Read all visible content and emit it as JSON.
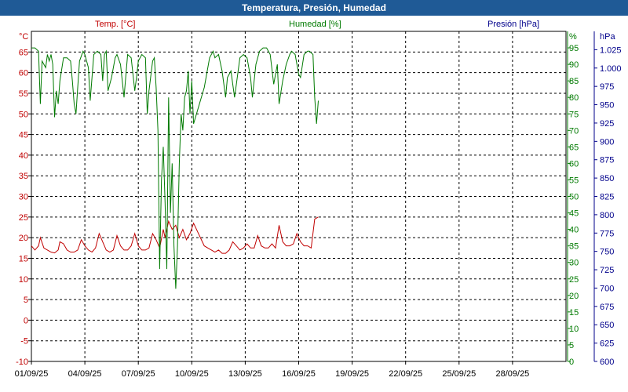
{
  "window": {
    "title": "Temperatura, Presión, Humedad"
  },
  "headers": {
    "temp": "Temp. [°C]",
    "hum": "Humedad [%]",
    "pres": "Presión [hPa]",
    "temp_unit": "°C",
    "hum_unit": "%",
    "pres_unit": "hPa"
  },
  "colors": {
    "temp": "#c00000",
    "hum": "#007a00",
    "pres": "#00008b",
    "title_bg": "#1f5a96"
  },
  "chart_data": {
    "type": "line",
    "title": "Temperatura, Presión, Humedad",
    "x_ticks": [
      "01/09/25",
      "04/09/25",
      "07/09/25",
      "10/09/25",
      "13/09/25",
      "16/09/25",
      "19/09/25",
      "22/09/25",
      "25/09/25",
      "28/09/25"
    ],
    "x_range_days": [
      0,
      30
    ],
    "grid": true,
    "axes": {
      "temp": {
        "label": "°C",
        "range": [
          -10,
          70
        ],
        "ticks": [
          -10,
          -5,
          0,
          5,
          10,
          15,
          20,
          25,
          30,
          35,
          40,
          45,
          50,
          55,
          60,
          65
        ]
      },
      "hum": {
        "label": "%",
        "range": [
          0,
          100
        ],
        "ticks": [
          0,
          5,
          10,
          15,
          20,
          25,
          30,
          35,
          40,
          45,
          50,
          55,
          60,
          65,
          70,
          75,
          80,
          85,
          90,
          95
        ]
      },
      "pres": {
        "label": "hPa",
        "range": [
          600,
          1050
        ],
        "ticks": [
          "600",
          "625",
          "650",
          "675",
          "700",
          "725",
          "750",
          "775",
          "800",
          "825",
          "850",
          "875",
          "900",
          "925",
          "950",
          "975",
          "1.000",
          "1.025"
        ]
      }
    },
    "series": [
      {
        "name": "Temp. [°C]",
        "axis": "temp",
        "points": [
          [
            0.0,
            18
          ],
          [
            0.2,
            17
          ],
          [
            0.4,
            18
          ],
          [
            0.5,
            20
          ],
          [
            0.7,
            17.5
          ],
          [
            0.9,
            17
          ],
          [
            1.1,
            16.5
          ],
          [
            1.3,
            16.3
          ],
          [
            1.5,
            17
          ],
          [
            1.6,
            19
          ],
          [
            1.8,
            18.5
          ],
          [
            2.0,
            17
          ],
          [
            2.2,
            16.5
          ],
          [
            2.4,
            16.5
          ],
          [
            2.6,
            17
          ],
          [
            2.8,
            19.5
          ],
          [
            3.0,
            18
          ],
          [
            3.2,
            17
          ],
          [
            3.4,
            16.5
          ],
          [
            3.6,
            17.5
          ],
          [
            3.8,
            21
          ],
          [
            4.0,
            19
          ],
          [
            4.2,
            17
          ],
          [
            4.4,
            16.5
          ],
          [
            4.6,
            17
          ],
          [
            4.8,
            20.5
          ],
          [
            5.0,
            18
          ],
          [
            5.2,
            17
          ],
          [
            5.4,
            17
          ],
          [
            5.6,
            18
          ],
          [
            5.8,
            21
          ],
          [
            6.0,
            18
          ],
          [
            6.2,
            17
          ],
          [
            6.4,
            17
          ],
          [
            6.6,
            17.5
          ],
          [
            6.8,
            21
          ],
          [
            7.0,
            19.5
          ],
          [
            7.2,
            17.5
          ],
          [
            7.4,
            22
          ],
          [
            7.5,
            20
          ],
          [
            7.7,
            24
          ],
          [
            7.9,
            22
          ],
          [
            8.1,
            23
          ],
          [
            8.3,
            20
          ],
          [
            8.5,
            22
          ],
          [
            8.7,
            19.5
          ],
          [
            8.9,
            21
          ],
          [
            9.1,
            23.5
          ],
          [
            9.7,
            18
          ],
          [
            9.9,
            17.5
          ],
          [
            10.1,
            17
          ],
          [
            10.3,
            16.5
          ],
          [
            10.5,
            17
          ],
          [
            10.7,
            16.2
          ],
          [
            10.9,
            16.2
          ],
          [
            11.1,
            17
          ],
          [
            11.3,
            19
          ],
          [
            11.5,
            18
          ],
          [
            11.7,
            17
          ],
          [
            11.9,
            17.5
          ],
          [
            12.1,
            18.5
          ],
          [
            12.3,
            17.5
          ],
          [
            12.5,
            17.5
          ],
          [
            12.7,
            20.5
          ],
          [
            12.9,
            18
          ],
          [
            13.1,
            17.5
          ],
          [
            13.3,
            17.5
          ],
          [
            13.5,
            18.5
          ],
          [
            13.7,
            17.5
          ],
          [
            13.9,
            23
          ],
          [
            14.1,
            19
          ],
          [
            14.3,
            18
          ],
          [
            14.5,
            18
          ],
          [
            14.7,
            18.5
          ],
          [
            14.9,
            21
          ],
          [
            15.1,
            19
          ],
          [
            15.3,
            18
          ],
          [
            15.5,
            18
          ],
          [
            15.7,
            17.5
          ],
          [
            15.9,
            24.5
          ],
          [
            16.1,
            25
          ]
        ]
      },
      {
        "name": "Humedad [%]",
        "axis": "hum",
        "points": [
          [
            0.0,
            95
          ],
          [
            0.2,
            95
          ],
          [
            0.4,
            94
          ],
          [
            0.5,
            78
          ],
          [
            0.6,
            91
          ],
          [
            0.8,
            89
          ],
          [
            0.9,
            93
          ],
          [
            1.0,
            91
          ],
          [
            1.1,
            93
          ],
          [
            1.2,
            90
          ],
          [
            1.3,
            74
          ],
          [
            1.4,
            82
          ],
          [
            1.5,
            78
          ],
          [
            1.6,
            85
          ],
          [
            1.8,
            92
          ],
          [
            2.0,
            92
          ],
          [
            2.2,
            91
          ],
          [
            2.3,
            85
          ],
          [
            2.4,
            78
          ],
          [
            2.5,
            75
          ],
          [
            2.6,
            83
          ],
          [
            2.7,
            91
          ],
          [
            2.9,
            94
          ],
          [
            3.0,
            93
          ],
          [
            3.2,
            89
          ],
          [
            3.3,
            79
          ],
          [
            3.5,
            93
          ],
          [
            3.7,
            94
          ],
          [
            3.9,
            93
          ],
          [
            4.0,
            85
          ],
          [
            4.1,
            93
          ],
          [
            4.2,
            94
          ],
          [
            4.3,
            82
          ],
          [
            4.5,
            86
          ],
          [
            4.7,
            92
          ],
          [
            4.8,
            93
          ],
          [
            5.0,
            90
          ],
          [
            5.2,
            80
          ],
          [
            5.4,
            93
          ],
          [
            5.6,
            92
          ],
          [
            5.8,
            82
          ],
          [
            5.9,
            86
          ],
          [
            6.0,
            91
          ],
          [
            6.2,
            93
          ],
          [
            6.4,
            92
          ],
          [
            6.5,
            75
          ],
          [
            6.6,
            82
          ],
          [
            6.8,
            91
          ],
          [
            6.9,
            92
          ],
          [
            7.0,
            83
          ],
          [
            7.1,
            70
          ],
          [
            7.2,
            28
          ],
          [
            7.3,
            55
          ],
          [
            7.4,
            65
          ],
          [
            7.5,
            48
          ],
          [
            7.6,
            28
          ],
          [
            7.7,
            80
          ],
          [
            7.8,
            45
          ],
          [
            7.9,
            60
          ],
          [
            8.0,
            35
          ],
          [
            8.1,
            22
          ],
          [
            8.2,
            35
          ],
          [
            8.3,
            60
          ],
          [
            8.4,
            75
          ],
          [
            8.5,
            70
          ],
          [
            8.6,
            80
          ],
          [
            8.7,
            82
          ],
          [
            8.8,
            88
          ],
          [
            8.9,
            75
          ],
          [
            9.0,
            85
          ],
          [
            9.1,
            72
          ],
          [
            9.7,
            83
          ],
          [
            9.8,
            86
          ],
          [
            10.0,
            92
          ],
          [
            10.2,
            94
          ],
          [
            10.3,
            92
          ],
          [
            10.5,
            93
          ],
          [
            10.7,
            88
          ],
          [
            10.9,
            80
          ],
          [
            11.0,
            86
          ],
          [
            11.2,
            88
          ],
          [
            11.4,
            80
          ],
          [
            11.5,
            84
          ],
          [
            11.7,
            92
          ],
          [
            11.9,
            93
          ],
          [
            12.1,
            92
          ],
          [
            12.3,
            86
          ],
          [
            12.4,
            80
          ],
          [
            12.6,
            90
          ],
          [
            12.8,
            94
          ],
          [
            13.0,
            95
          ],
          [
            13.2,
            95
          ],
          [
            13.4,
            93
          ],
          [
            13.6,
            84
          ],
          [
            13.8,
            90
          ],
          [
            13.9,
            78
          ],
          [
            14.1,
            85
          ],
          [
            14.3,
            90
          ],
          [
            14.5,
            93
          ],
          [
            14.6,
            94
          ],
          [
            14.8,
            93
          ],
          [
            15.0,
            87
          ],
          [
            15.1,
            86
          ],
          [
            15.3,
            93
          ],
          [
            15.5,
            94
          ],
          [
            15.6,
            94
          ],
          [
            15.8,
            93
          ],
          [
            15.9,
            80
          ],
          [
            16.0,
            72
          ],
          [
            16.1,
            79
          ]
        ]
      }
    ]
  }
}
